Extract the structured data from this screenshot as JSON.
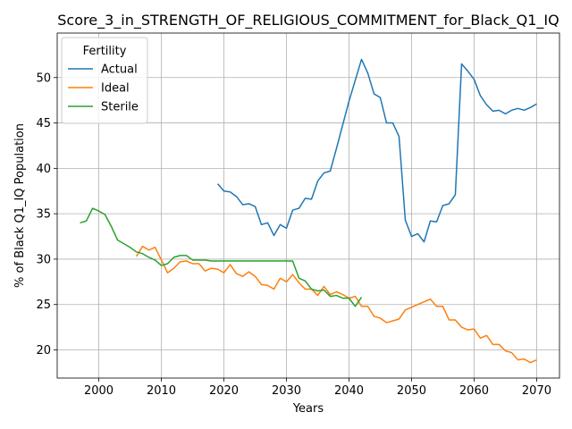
{
  "chart_data": {
    "type": "line",
    "title": "Score_3_in_STRENGTH_OF_RELIGIOUS_COMMITMENT_for_Black_Q1_IQ",
    "xlabel": "Years",
    "ylabel": "% of Black Q1_IQ Population",
    "xlim": [
      1993.35,
      2073.65
    ],
    "ylim": [
      16.9,
      54.9
    ],
    "xticks": [
      2000,
      2010,
      2020,
      2030,
      2040,
      2050,
      2060,
      2070
    ],
    "yticks": [
      20,
      25,
      30,
      35,
      40,
      45,
      50
    ],
    "grid": true,
    "legend": {
      "title": "Fertility",
      "placement": "upper-left"
    },
    "series": [
      {
        "name": "Actual",
        "color": "#1f77b4",
        "x": [
          2019,
          2020,
          2021,
          2022,
          2023,
          2024,
          2025,
          2026,
          2027,
          2028,
          2029,
          2030,
          2031,
          2032,
          2033,
          2034,
          2035,
          2036,
          2037,
          2038,
          2039,
          2040,
          2041,
          2042,
          2043,
          2044,
          2045,
          2046,
          2047,
          2048,
          2049,
          2050,
          2051,
          2052,
          2053,
          2054,
          2055,
          2056,
          2057,
          2058,
          2059,
          2060,
          2061,
          2062,
          2063,
          2064,
          2065,
          2066,
          2067,
          2068,
          2069,
          2070
        ],
        "y": [
          38.3,
          37.5,
          37.4,
          36.9,
          36.0,
          36.1,
          35.8,
          33.8,
          34.0,
          32.6,
          33.8,
          33.4,
          35.4,
          35.6,
          36.7,
          36.6,
          38.6,
          39.5,
          39.7,
          42.2,
          44.8,
          47.4,
          49.7,
          52.0,
          50.5,
          48.2,
          47.8,
          45.0,
          45.0,
          43.5,
          34.3,
          32.5,
          32.8,
          31.9,
          34.2,
          34.1,
          35.9,
          36.1,
          37.1,
          51.5,
          50.7,
          49.8,
          48.0,
          47.0,
          46.3,
          46.4,
          46.0,
          46.4,
          46.6,
          46.4,
          46.7,
          47.1
        ]
      },
      {
        "name": "Ideal",
        "color": "#ff7f0e",
        "x": [
          2006,
          2007,
          2008,
          2009,
          2010,
          2011,
          2012,
          2013,
          2014,
          2015,
          2016,
          2017,
          2018,
          2019,
          2020,
          2021,
          2022,
          2023,
          2024,
          2025,
          2026,
          2027,
          2028,
          2029,
          2030,
          2031,
          2032,
          2033,
          2034,
          2035,
          2036,
          2037,
          2038,
          2039,
          2040,
          2041,
          2042,
          2043,
          2044,
          2045,
          2046,
          2047,
          2048,
          2049,
          2050,
          2051,
          2052,
          2053,
          2054,
          2055,
          2056,
          2057,
          2058,
          2059,
          2060,
          2061,
          2062,
          2063,
          2064,
          2065,
          2066,
          2067,
          2068,
          2069,
          2070
        ],
        "y": [
          30.3,
          31.4,
          31.0,
          31.3,
          29.9,
          28.5,
          29.0,
          29.7,
          29.8,
          29.5,
          29.5,
          28.7,
          29.0,
          28.9,
          28.5,
          29.4,
          28.4,
          28.1,
          28.6,
          28.1,
          27.2,
          27.1,
          26.7,
          27.9,
          27.5,
          28.3,
          27.4,
          26.7,
          26.7,
          26.0,
          27.0,
          26.1,
          26.4,
          26.1,
          25.7,
          25.9,
          24.8,
          24.8,
          23.7,
          23.5,
          23.0,
          23.2,
          23.4,
          24.4,
          24.7,
          25.0,
          25.3,
          25.6,
          24.8,
          24.8,
          23.3,
          23.3,
          22.5,
          22.2,
          22.3,
          21.3,
          21.6,
          20.6,
          20.6,
          19.9,
          19.7,
          18.9,
          19.0,
          18.6,
          18.9
        ]
      },
      {
        "name": "Sterile",
        "color": "#2ca02c",
        "x": [
          1997,
          1998,
          1999,
          2000,
          2001,
          2002,
          2003,
          2004,
          2005,
          2006,
          2007,
          2008,
          2009,
          2010,
          2011,
          2012,
          2013,
          2014,
          2015,
          2016,
          2017,
          2018,
          2019,
          2020,
          2021,
          2022,
          2023,
          2024,
          2025,
          2026,
          2027,
          2028,
          2029,
          2030,
          2031,
          2032,
          2033,
          2034,
          2035,
          2036,
          2037,
          2038,
          2039,
          2040,
          2041,
          2042
        ],
        "y": [
          34.0,
          34.2,
          35.6,
          35.3,
          34.9,
          33.6,
          32.1,
          31.7,
          31.3,
          30.8,
          30.6,
          30.2,
          29.9,
          29.3,
          29.5,
          30.2,
          30.4,
          30.4,
          29.9,
          29.9,
          29.9,
          29.8,
          29.8,
          29.8,
          29.8,
          29.8,
          29.8,
          29.8,
          29.8,
          29.8,
          29.8,
          29.8,
          29.8,
          29.8,
          29.8,
          27.9,
          27.6,
          26.7,
          26.5,
          26.6,
          25.9,
          26.0,
          25.7,
          25.7,
          24.8,
          25.8
        ]
      }
    ]
  }
}
